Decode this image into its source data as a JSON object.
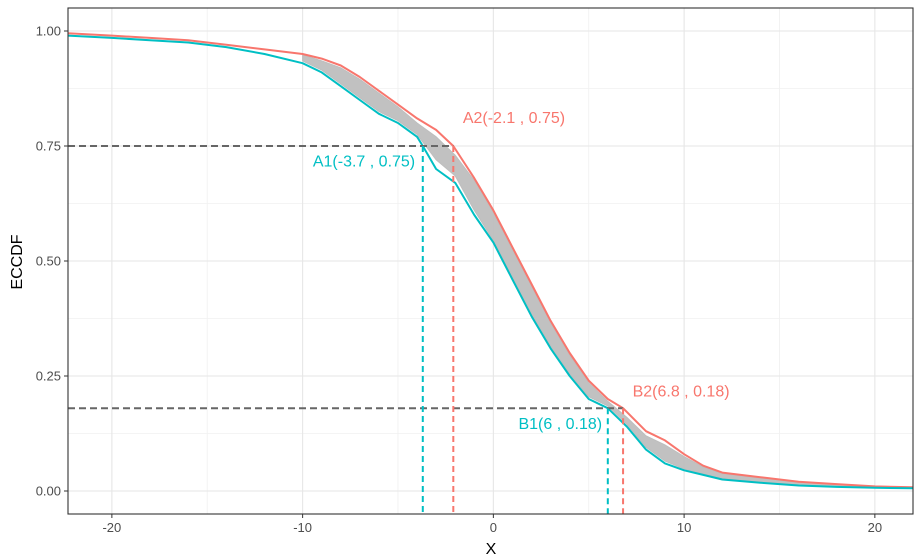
{
  "chart_data": {
    "type": "line",
    "xlabel": "X",
    "ylabel": "ECCDF",
    "xlim": [
      -22.3,
      22
    ],
    "ylim": [
      -0.05,
      1.05
    ],
    "x_ticks": [
      -20,
      -10,
      0,
      10,
      20
    ],
    "x_tick_labels": [
      "-20",
      "-10",
      "0",
      "10",
      "20"
    ],
    "y_ticks": [
      0,
      0.25,
      0.5,
      0.75,
      1
    ],
    "y_tick_labels": [
      "0.00",
      "0.25",
      "0.50",
      "0.75",
      "1.00"
    ],
    "grid": true,
    "legend": "none",
    "colors": {
      "upper": "#F8766D",
      "lower": "#00BFC4",
      "band": "#BEBEBE",
      "reference": "#666666"
    },
    "series": [
      {
        "color": "#F8766D",
        "x": [
          -22.3,
          -20,
          -18,
          -16,
          -14,
          -12,
          -10,
          -9,
          -8,
          -7,
          -6,
          -5,
          -4,
          -3,
          -2.1,
          -1,
          0,
          1,
          2,
          3,
          4,
          5,
          6,
          6.8,
          8,
          9,
          10,
          11,
          12,
          14,
          16,
          18,
          20,
          22
        ],
        "y": [
          0.995,
          0.99,
          0.985,
          0.98,
          0.97,
          0.96,
          0.95,
          0.94,
          0.925,
          0.9,
          0.87,
          0.84,
          0.81,
          0.785,
          0.75,
          0.68,
          0.61,
          0.53,
          0.45,
          0.37,
          0.3,
          0.24,
          0.2,
          0.18,
          0.13,
          0.11,
          0.08,
          0.055,
          0.04,
          0.03,
          0.02,
          0.015,
          0.01,
          0.008
        ]
      },
      {
        "color": "#00BFC4",
        "x": [
          -22.3,
          -20,
          -18,
          -16,
          -14,
          -12,
          -10,
          -9,
          -8,
          -7,
          -6,
          -5,
          -4,
          -3.7,
          -3,
          -2,
          -1,
          0,
          1,
          2,
          3,
          4,
          5,
          6,
          7,
          8,
          9,
          10,
          11,
          12,
          14,
          16,
          18,
          20,
          22
        ],
        "y": [
          0.99,
          0.985,
          0.98,
          0.975,
          0.965,
          0.95,
          0.93,
          0.91,
          0.88,
          0.85,
          0.82,
          0.8,
          0.77,
          0.75,
          0.7,
          0.67,
          0.6,
          0.54,
          0.46,
          0.38,
          0.31,
          0.25,
          0.2,
          0.18,
          0.14,
          0.09,
          0.06,
          0.045,
          0.035,
          0.025,
          0.018,
          0.012,
          0.009,
          0.007,
          0.006
        ]
      }
    ],
    "band": {
      "color": "#BEBEBE",
      "x": [
        -10,
        -9,
        -8,
        -7,
        -6,
        -5,
        -4,
        -3,
        -2,
        -1,
        0,
        1,
        2,
        3,
        4,
        5,
        6,
        7,
        8,
        9,
        10,
        11,
        12,
        14,
        16,
        18,
        20
      ],
      "upper": [
        0.948,
        0.935,
        0.92,
        0.895,
        0.865,
        0.835,
        0.8,
        0.77,
        0.73,
        0.675,
        0.605,
        0.525,
        0.445,
        0.365,
        0.295,
        0.235,
        0.195,
        0.16,
        0.12,
        0.1,
        0.075,
        0.052,
        0.038,
        0.028,
        0.019,
        0.014,
        0.009
      ],
      "lower": [
        0.935,
        0.915,
        0.885,
        0.855,
        0.825,
        0.805,
        0.775,
        0.72,
        0.685,
        0.61,
        0.545,
        0.465,
        0.385,
        0.315,
        0.255,
        0.205,
        0.185,
        0.145,
        0.095,
        0.065,
        0.048,
        0.037,
        0.027,
        0.019,
        0.013,
        0.01,
        0.007
      ]
    },
    "reference_lines": {
      "horizontal": [
        {
          "y": 0.75,
          "x_end": -2.1
        },
        {
          "y": 0.18,
          "x_end": 6.8
        }
      ],
      "vertical": [
        {
          "x": -3.7,
          "y_end": 0.75,
          "color": "#00BFC4"
        },
        {
          "x": -2.1,
          "y_end": 0.75,
          "color": "#F8766D"
        },
        {
          "x": 6,
          "y_end": 0.18,
          "color": "#00BFC4"
        },
        {
          "x": 6.8,
          "y_end": 0.18,
          "color": "#F8766D"
        }
      ]
    },
    "annotations": [
      {
        "text": "A2(-2.1 , 0.75)",
        "x": -1.6,
        "y": 0.8,
        "color": "#F8766D",
        "anchor": "start"
      },
      {
        "text": "A1(-3.7 , 0.75)",
        "x": -4.1,
        "y": 0.705,
        "color": "#00BFC4",
        "anchor": "end"
      },
      {
        "text": "B2(6.8 , 0.18)",
        "x": 7.3,
        "y": 0.205,
        "color": "#F8766D",
        "anchor": "start"
      },
      {
        "text": "B1(6 , 0.18)",
        "x": 5.7,
        "y": 0.135,
        "color": "#00BFC4",
        "anchor": "end"
      }
    ]
  }
}
